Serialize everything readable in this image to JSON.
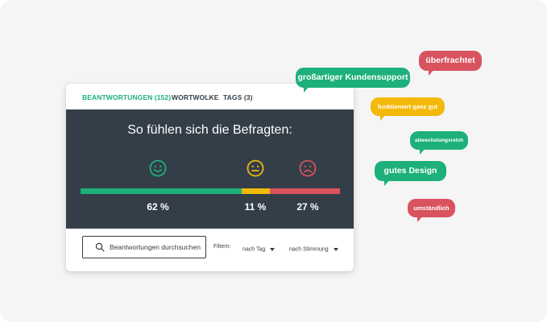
{
  "tabs": [
    {
      "label": "BEANTWORTUNGEN (152)",
      "active": true
    },
    {
      "label": "WORTWOLKE",
      "active": false
    },
    {
      "label": "TAGS (3)",
      "active": false
    }
  ],
  "panel": {
    "title": "So fühlen sich die Befragten:",
    "sentiments": [
      {
        "name": "positiv",
        "icon": "smiley-happy-icon",
        "percent": 62,
        "label": "62 %",
        "color": "#1db07a"
      },
      {
        "name": "neutral",
        "icon": "smiley-neutral-icon",
        "percent": 11,
        "label": "11 %",
        "color": "#f2b90a"
      },
      {
        "name": "negativ",
        "icon": "smiley-sad-icon",
        "percent": 27,
        "label": "27 %",
        "color": "#d9535f"
      }
    ]
  },
  "search": {
    "placeholder": "Beantwortungen durchsuchen",
    "icon": "search-icon"
  },
  "filters": {
    "label": "Filtern:",
    "options": [
      {
        "label": "nach Tag",
        "icon": "caret-down-icon"
      },
      {
        "label": "nach Stimmung",
        "icon": "caret-down-icon"
      }
    ]
  },
  "bubbles": [
    {
      "text": "großartiger Kundensupport",
      "color": "#1db07a"
    },
    {
      "text": "überfrachtet",
      "color": "#d9535f"
    },
    {
      "text": "funktioniert ganz gut",
      "color": "#f2b90a"
    },
    {
      "text": "abwechslungsreich",
      "color": "#1db07a"
    },
    {
      "text": "gutes Design",
      "color": "#1db07a"
    },
    {
      "text": "umständlich",
      "color": "#d9535f"
    }
  ]
}
